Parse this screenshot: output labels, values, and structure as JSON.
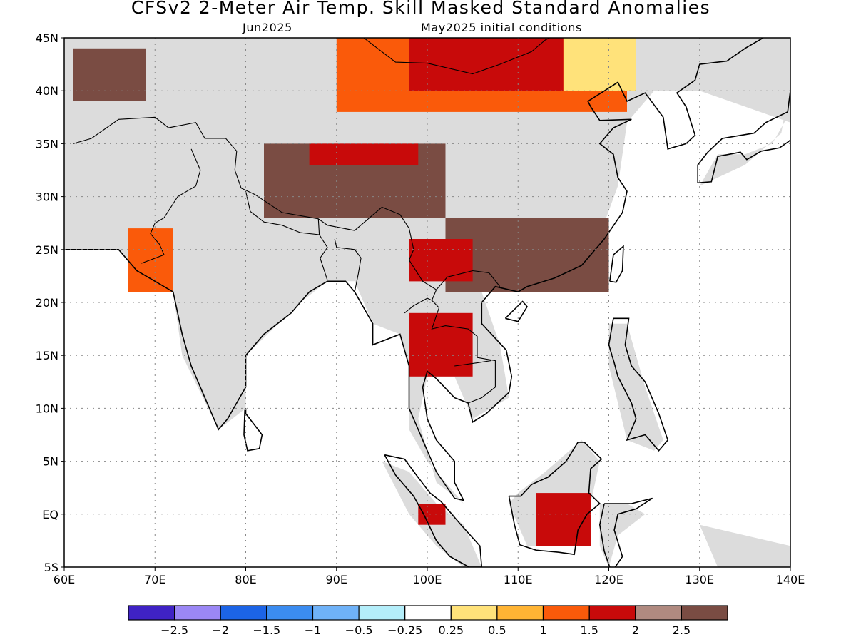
{
  "title": "CFSv2 2-Meter Air Temp. Skill Masked Standard Anomalies",
  "valid_month": "Jun2025",
  "initial_conditions": "May2025 initial conditions",
  "map": {
    "lon_range": [
      60,
      140
    ],
    "lat_range": [
      -5,
      45
    ],
    "lon_ticks": [
      {
        "value": 60,
        "label": "60E"
      },
      {
        "value": 70,
        "label": "70E"
      },
      {
        "value": 80,
        "label": "80E"
      },
      {
        "value": 90,
        "label": "90E"
      },
      {
        "value": 100,
        "label": "100E"
      },
      {
        "value": 110,
        "label": "110E"
      },
      {
        "value": 120,
        "label": "120E"
      },
      {
        "value": 130,
        "label": "130E"
      },
      {
        "value": 140,
        "label": "140E"
      }
    ],
    "lat_ticks": [
      {
        "value": 45,
        "label": "45N"
      },
      {
        "value": 40,
        "label": "40N"
      },
      {
        "value": 35,
        "label": "35N"
      },
      {
        "value": 30,
        "label": "30N"
      },
      {
        "value": 25,
        "label": "25N"
      },
      {
        "value": 20,
        "label": "20N"
      },
      {
        "value": 15,
        "label": "15N"
      },
      {
        "value": 10,
        "label": "10N"
      },
      {
        "value": 5,
        "label": "5N"
      },
      {
        "value": 0,
        "label": "EQ"
      },
      {
        "value": -5,
        "label": "5S"
      }
    ],
    "grid": true,
    "masked_color": "#dcdcdc",
    "anomaly_regions": [
      {
        "name": "mongolia-north-china",
        "level": 1.5,
        "lon": [
          90,
          122
        ],
        "lat": [
          38,
          45
        ]
      },
      {
        "name": "mongolia-core",
        "level": 2,
        "lon": [
          98,
          115
        ],
        "lat": [
          40,
          45
        ]
      },
      {
        "name": "manchuria-yellow",
        "level": 0.5,
        "lon": [
          115,
          123
        ],
        "lat": [
          40,
          45
        ]
      },
      {
        "name": "tibet-plateau",
        "level": 2.5,
        "lon": [
          82,
          102
        ],
        "lat": [
          28,
          35
        ]
      },
      {
        "name": "tibet-red-band",
        "level": 2,
        "lon": [
          87,
          99
        ],
        "lat": [
          33,
          35
        ]
      },
      {
        "name": "south-china",
        "level": 2.5,
        "lon": [
          102,
          120
        ],
        "lat": [
          21,
          28
        ]
      },
      {
        "name": "yunnan",
        "level": 2,
        "lon": [
          98,
          105
        ],
        "lat": [
          22,
          26
        ]
      },
      {
        "name": "indochina",
        "level": 2,
        "lon": [
          98,
          105
        ],
        "lat": [
          13,
          19
        ]
      },
      {
        "name": "borneo",
        "level": 2,
        "lon": [
          112,
          118
        ],
        "lat": [
          -3,
          2
        ]
      },
      {
        "name": "pakistan-west",
        "level": 1.5,
        "lon": [
          67,
          72
        ],
        "lat": [
          21,
          27
        ]
      },
      {
        "name": "central-asia",
        "level": 2.5,
        "lon": [
          61,
          69
        ],
        "lat": [
          39,
          44
        ]
      },
      {
        "name": "sumatra-south",
        "level": 2,
        "lon": [
          99,
          102
        ],
        "lat": [
          -1,
          1
        ]
      }
    ]
  },
  "colorbar": {
    "colors": [
      "#3f22c4",
      "#9b87f5",
      "#1c64e6",
      "#3b8cf0",
      "#6fb2f8",
      "#b4eefa",
      "#ffffff",
      "#ffe27a",
      "#ffb434",
      "#fa5a0a",
      "#c80a0a",
      "#b08a80",
      "#7a4c43"
    ],
    "labels": [
      "-2.5",
      "-2",
      "-1.5",
      "-1",
      "-0.5",
      "-0.25",
      "0.25",
      "0.5",
      "1",
      "1.5",
      "2",
      "2.5"
    ]
  }
}
